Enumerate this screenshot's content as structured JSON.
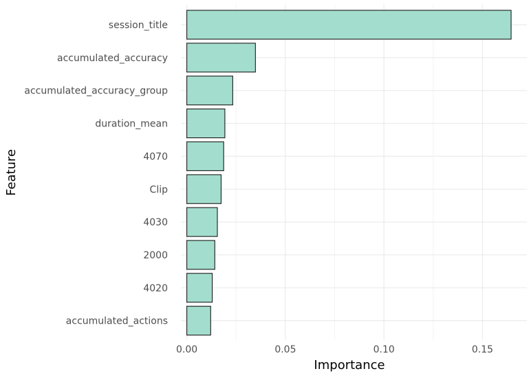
{
  "chart_data": {
    "type": "bar",
    "orientation": "horizontal",
    "title": "",
    "xlabel": "Importance",
    "ylabel": "Feature",
    "categories": [
      "session_title",
      "accumulated_accuracy",
      "accumulated_accuracy_group",
      "duration_mean",
      "4070",
      "Clip",
      "4030",
      "2000",
      "4020",
      "accumulated_actions"
    ],
    "values": [
      0.1645,
      0.0348,
      0.0233,
      0.0193,
      0.0187,
      0.0174,
      0.0155,
      0.0142,
      0.0129,
      0.0121
    ],
    "xlim": [
      -0.003,
      0.1725
    ],
    "x_ticks": [
      0.0,
      0.05,
      0.1,
      0.15
    ],
    "x_tick_labels": [
      "0.00",
      "0.05",
      "0.10",
      "0.15"
    ],
    "grid": true,
    "legend": "none",
    "colors": {
      "bar_fill": "#a3ddce",
      "bar_stroke": "#1a1a1a",
      "grid_major": "#ebebeb",
      "grid_minor": "#f3f3f3",
      "tick_text": "#4d4d4d",
      "title_text": "#000000"
    }
  }
}
